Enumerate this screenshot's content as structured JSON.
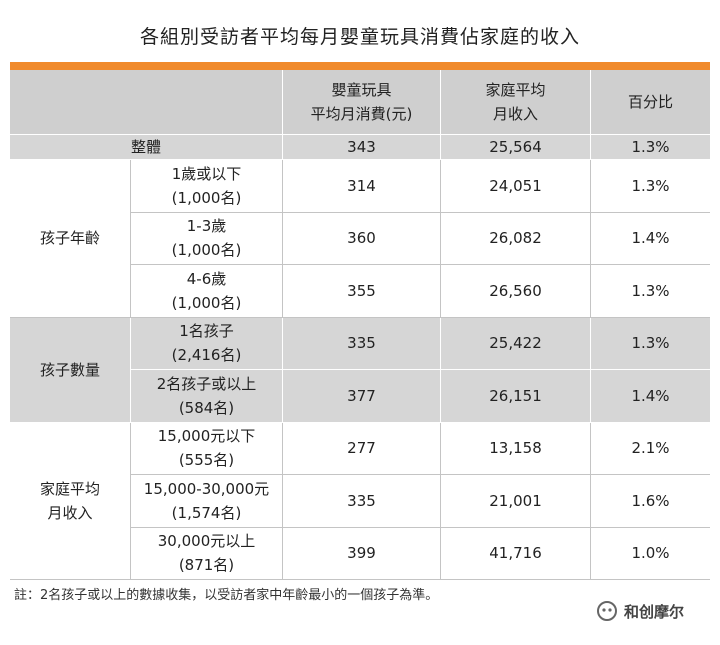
{
  "title": "各組別受訪者平均每月嬰童玩具消費佔家庭的收入",
  "header": {
    "columns": [
      [
        "嬰童玩具",
        "平均月消費(元)"
      ],
      [
        "家庭平均",
        "月收入"
      ],
      [
        "百分比"
      ]
    ]
  },
  "overall": {
    "label": "整體",
    "values": [
      "343",
      "25,564",
      "1.3%"
    ]
  },
  "groups": [
    {
      "label": [
        "孩子年齡"
      ],
      "rows": [
        {
          "label": [
            "1歲或以下",
            "(1,000名)"
          ],
          "values": [
            "314",
            "24,051",
            "1.3%"
          ]
        },
        {
          "label": [
            "1-3歲",
            "(1,000名)"
          ],
          "values": [
            "360",
            "26,082",
            "1.4%"
          ]
        },
        {
          "label": [
            "4-6歲",
            "(1,000名)"
          ],
          "values": [
            "355",
            "26,560",
            "1.3%"
          ]
        }
      ]
    },
    {
      "label": [
        "孩子數量"
      ],
      "rows": [
        {
          "label": [
            "1名孩子",
            "(2,416名)"
          ],
          "values": [
            "335",
            "25,422",
            "1.3%"
          ]
        },
        {
          "label": [
            "2名孩子或以上",
            "(584名)"
          ],
          "values": [
            "377",
            "26,151",
            "1.4%"
          ]
        }
      ]
    },
    {
      "label": [
        "家庭平均",
        "月收入"
      ],
      "rows": [
        {
          "label": [
            "15,000元以下",
            "(555名)"
          ],
          "values": [
            "277",
            "13,158",
            "2.1%"
          ]
        },
        {
          "label": [
            "15,000-30,000元",
            "(1,574名)"
          ],
          "values": [
            "335",
            "21,001",
            "1.6%"
          ]
        },
        {
          "label": [
            "30,000元以上",
            "(871名)"
          ],
          "values": [
            "399",
            "41,716",
            "1.0%"
          ]
        }
      ]
    }
  ],
  "note": "註：2名孩子或以上的數據收集，以受訪者家中年齡最小的一個孩子為準。",
  "watermark": "和创摩尔"
}
